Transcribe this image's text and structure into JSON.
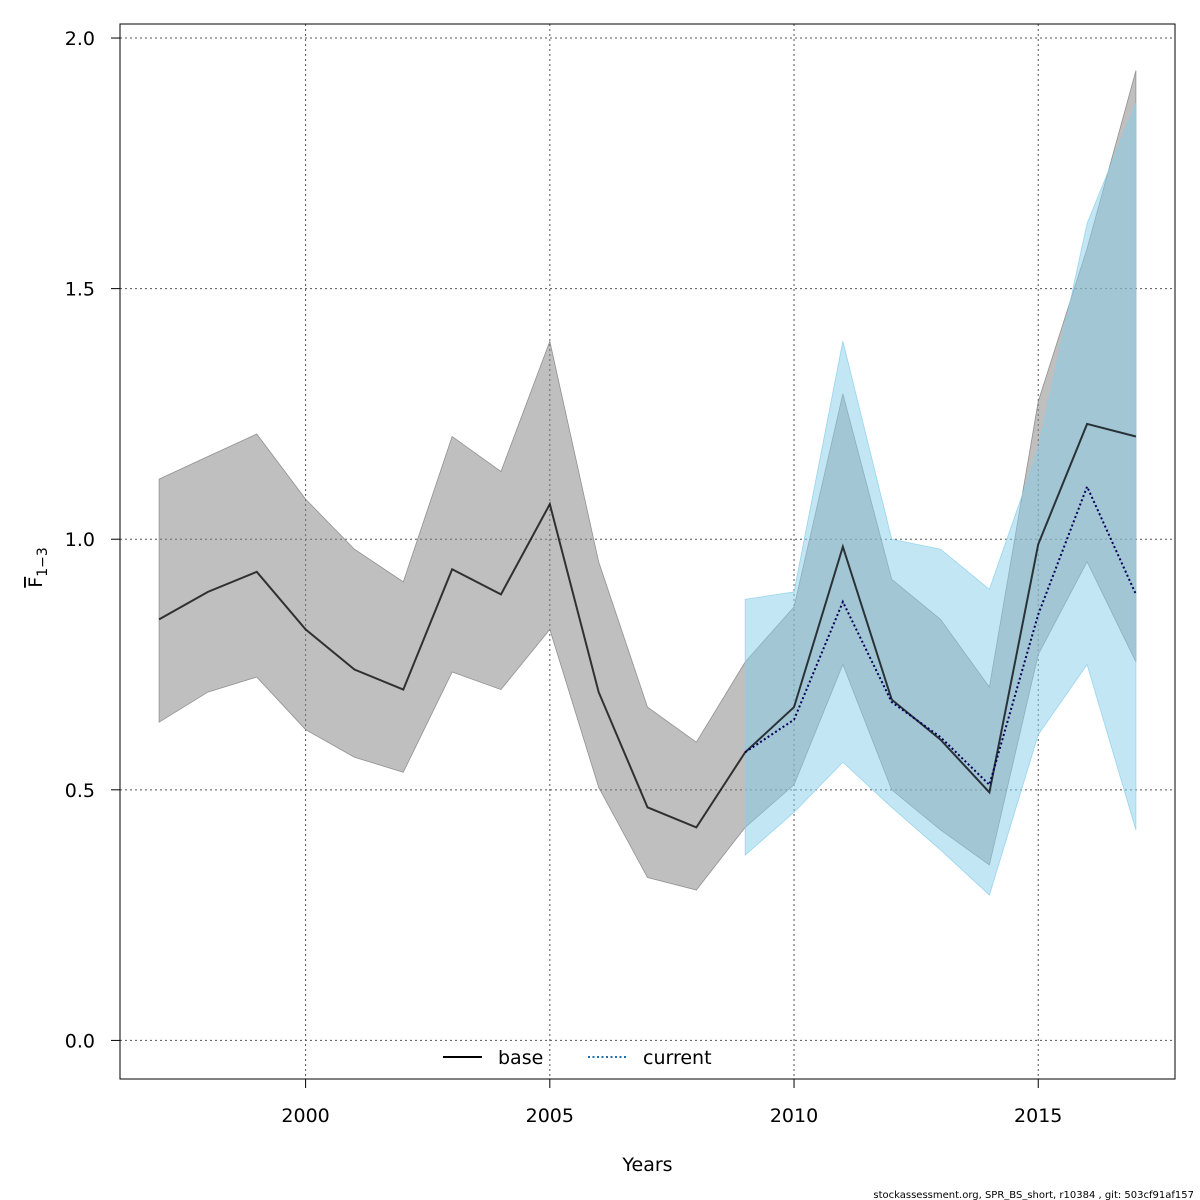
{
  "chart_data": {
    "type": "line",
    "xlabel": "Years",
    "ylabel": "F",
    "ylabel_sub": "1−3",
    "xlim": [
      1996.2,
      2017.8
    ],
    "ylim": [
      -0.077,
      2.028
    ],
    "xticks": [
      "2000",
      "2005",
      "2010",
      "2015"
    ],
    "yticks": [
      "0.0",
      "0.5",
      "1.0",
      "1.5",
      "2.0"
    ],
    "grid": true,
    "legend_position": "bottom-center",
    "legend": [
      {
        "label": "base",
        "style": "solid",
        "color": "#000000"
      },
      {
        "label": "current",
        "style": "dotted",
        "color": "#1f6fb0"
      }
    ],
    "series": [
      {
        "name": "base",
        "color": "#000000",
        "band_color": "#808080",
        "x": [
          1997,
          1998,
          1999,
          2000,
          2001,
          2002,
          2003,
          2004,
          2005,
          2006,
          2007,
          2008,
          2009,
          2010,
          2011,
          2012,
          2013,
          2014,
          2015,
          2016,
          2017
        ],
        "y": [
          0.84,
          0.895,
          0.935,
          0.82,
          0.74,
          0.7,
          0.94,
          0.89,
          1.07,
          0.695,
          0.465,
          0.425,
          0.575,
          0.665,
          0.985,
          0.68,
          0.6,
          0.495,
          0.99,
          1.23,
          1.205
        ],
        "lower": [
          0.635,
          0.695,
          0.725,
          0.62,
          0.565,
          0.535,
          0.735,
          0.7,
          0.82,
          0.505,
          0.325,
          0.3,
          0.425,
          0.51,
          0.75,
          0.5,
          0.42,
          0.35,
          0.77,
          0.955,
          0.755
        ],
        "upper": [
          1.12,
          1.165,
          1.21,
          1.08,
          0.98,
          0.915,
          1.205,
          1.135,
          1.395,
          0.955,
          0.665,
          0.595,
          0.755,
          0.865,
          1.29,
          0.92,
          0.84,
          0.705,
          1.275,
          1.58,
          1.935
        ]
      },
      {
        "name": "current",
        "color": "#00005a",
        "band_color": "#87ceeb",
        "x": [
          2009,
          2010,
          2011,
          2012,
          2013,
          2014,
          2015,
          2016,
          2017
        ],
        "y": [
          0.575,
          0.64,
          0.875,
          0.675,
          0.605,
          0.51,
          0.85,
          1.105,
          0.89
        ],
        "lower": [
          0.37,
          0.455,
          0.555,
          0.465,
          0.38,
          0.29,
          0.61,
          0.75,
          0.42
        ],
        "upper": [
          0.88,
          0.895,
          1.395,
          1.0,
          0.98,
          0.9,
          1.18,
          1.63,
          1.87
        ]
      }
    ]
  },
  "footer": "stockassessment.org, SPR_BS_short, r10384 , git: 503cf91af157"
}
